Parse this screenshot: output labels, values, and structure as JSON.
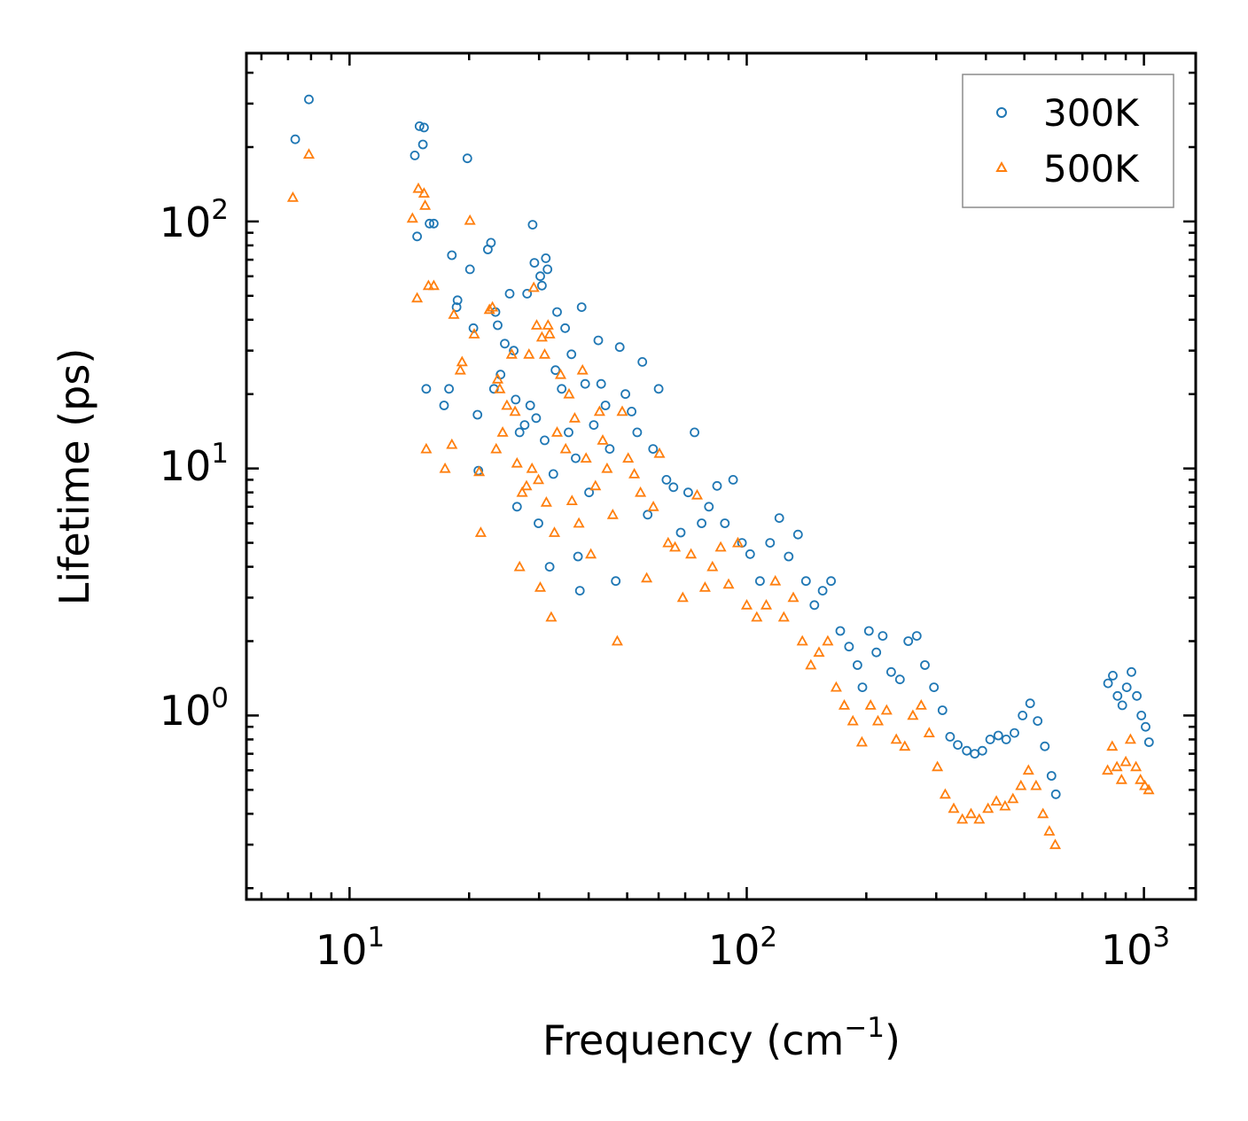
{
  "chart_data": {
    "type": "scatter",
    "xscale": "log",
    "yscale": "log",
    "xlim": [
      5.5,
      1350
    ],
    "ylim": [
      0.18,
      480
    ],
    "xlabel": "Frequency (cm",
    "xlabel_sup": "−1",
    "xlabel_suffix": ")",
    "ylabel": "Lifetime (ps)",
    "x_ticks": [
      {
        "base": "10",
        "exp": "1",
        "value": 10
      },
      {
        "base": "10",
        "exp": "2",
        "value": 100
      },
      {
        "base": "10",
        "exp": "3",
        "value": 1000
      }
    ],
    "y_ticks": [
      {
        "base": "10",
        "exp": "0",
        "value": 1
      },
      {
        "base": "10",
        "exp": "1",
        "value": 10
      },
      {
        "base": "10",
        "exp": "2",
        "value": 100
      }
    ],
    "legend_position": "top-right",
    "series": [
      {
        "name": "300K",
        "marker": "circle",
        "color": "#1f77b4",
        "points": [
          [
            7.3,
            215
          ],
          [
            7.9,
            312
          ],
          [
            14.6,
            185
          ],
          [
            14.8,
            87
          ],
          [
            15.0,
            243
          ],
          [
            15.3,
            205
          ],
          [
            15.4,
            240
          ],
          [
            15.6,
            21
          ],
          [
            15.9,
            98
          ],
          [
            16.3,
            98
          ],
          [
            17.3,
            18
          ],
          [
            17.8,
            21
          ],
          [
            18.1,
            73
          ],
          [
            18.6,
            45
          ],
          [
            18.7,
            48
          ],
          [
            19.8,
            180
          ],
          [
            20.1,
            64
          ],
          [
            20.5,
            37
          ],
          [
            21.0,
            16.5
          ],
          [
            21.1,
            9.8
          ],
          [
            22.3,
            77
          ],
          [
            22.7,
            82
          ],
          [
            23.1,
            21
          ],
          [
            23.3,
            43
          ],
          [
            23.6,
            38
          ],
          [
            24.0,
            24
          ],
          [
            24.6,
            32
          ],
          [
            25.3,
            51
          ],
          [
            25.9,
            30
          ],
          [
            26.2,
            19
          ],
          [
            26.4,
            7
          ],
          [
            26.8,
            14
          ],
          [
            27.6,
            15
          ],
          [
            28.0,
            51
          ],
          [
            28.5,
            18
          ],
          [
            28.9,
            97
          ],
          [
            29.2,
            68
          ],
          [
            29.5,
            16
          ],
          [
            29.9,
            6
          ],
          [
            30.2,
            60
          ],
          [
            30.5,
            55
          ],
          [
            31.0,
            13
          ],
          [
            31.2,
            71
          ],
          [
            31.5,
            64
          ],
          [
            31.9,
            4
          ],
          [
            32.6,
            9.5
          ],
          [
            33.0,
            25
          ],
          [
            33.3,
            43
          ],
          [
            34.2,
            21
          ],
          [
            34.9,
            37
          ],
          [
            35.6,
            14
          ],
          [
            36.2,
            29
          ],
          [
            37.1,
            11
          ],
          [
            37.6,
            4.4
          ],
          [
            38.0,
            3.2
          ],
          [
            38.4,
            45
          ],
          [
            39.2,
            22
          ],
          [
            40.1,
            8
          ],
          [
            41.2,
            15
          ],
          [
            42.3,
            33
          ],
          [
            43.0,
            22
          ],
          [
            44.1,
            18
          ],
          [
            45.2,
            12
          ],
          [
            46.8,
            3.5
          ],
          [
            47.9,
            31
          ],
          [
            49.5,
            20
          ],
          [
            51.3,
            17
          ],
          [
            53.0,
            14
          ],
          [
            54.6,
            27
          ],
          [
            56.3,
            6.5
          ],
          [
            58.1,
            12
          ],
          [
            60.0,
            21
          ],
          [
            62.8,
            9
          ],
          [
            65.4,
            8.4
          ],
          [
            68.2,
            5.5
          ],
          [
            71.2,
            8
          ],
          [
            73.9,
            14
          ],
          [
            77.0,
            6
          ],
          [
            80.3,
            7
          ],
          [
            84.2,
            8.5
          ],
          [
            88.1,
            6
          ],
          [
            92.4,
            9
          ],
          [
            97.3,
            5
          ],
          [
            102.0,
            4.5
          ],
          [
            108.0,
            3.5
          ],
          [
            114.5,
            5
          ],
          [
            120.8,
            6.3
          ],
          [
            127.5,
            4.4
          ],
          [
            134.6,
            5.4
          ],
          [
            141.0,
            3.5
          ],
          [
            148.0,
            2.8
          ],
          [
            155.3,
            3.2
          ],
          [
            163.0,
            3.5
          ],
          [
            172.0,
            2.2
          ],
          [
            181.0,
            1.9
          ],
          [
            190.0,
            1.6
          ],
          [
            195.6,
            1.3
          ],
          [
            203.0,
            2.2
          ],
          [
            212.0,
            1.8
          ],
          [
            220.0,
            2.1
          ],
          [
            231.0,
            1.5
          ],
          [
            243.0,
            1.4
          ],
          [
            255.0,
            2.0
          ],
          [
            268.0,
            2.1
          ],
          [
            281.0,
            1.6
          ],
          [
            296.0,
            1.3
          ],
          [
            311.0,
            1.05
          ],
          [
            325.0,
            0.82
          ],
          [
            340.0,
            0.76
          ],
          [
            358.0,
            0.72
          ],
          [
            375.0,
            0.7
          ],
          [
            392.0,
            0.72
          ],
          [
            410.0,
            0.8
          ],
          [
            430.0,
            0.83
          ],
          [
            450.0,
            0.8
          ],
          [
            472.0,
            0.85
          ],
          [
            495.0,
            1.0
          ],
          [
            517.0,
            1.12
          ],
          [
            540.0,
            0.95
          ],
          [
            563.0,
            0.75
          ],
          [
            585.0,
            0.57
          ],
          [
            600.0,
            0.48
          ],
          [
            812.0,
            1.35
          ],
          [
            835.0,
            1.45
          ],
          [
            858.0,
            1.2
          ],
          [
            882.0,
            1.1
          ],
          [
            905.0,
            1.3
          ],
          [
            930.0,
            1.5
          ],
          [
            960.0,
            1.2
          ],
          [
            985.0,
            1.0
          ],
          [
            1010.0,
            0.9
          ],
          [
            1030.0,
            0.78
          ]
        ]
      },
      {
        "name": "500K",
        "marker": "triangle",
        "color": "#ff7f0e",
        "points": [
          [
            7.2,
            125
          ],
          [
            7.9,
            187
          ],
          [
            14.4,
            103
          ],
          [
            14.8,
            49
          ],
          [
            14.9,
            136
          ],
          [
            15.4,
            130
          ],
          [
            15.5,
            116
          ],
          [
            15.6,
            12
          ],
          [
            15.8,
            55
          ],
          [
            16.3,
            55
          ],
          [
            17.4,
            10
          ],
          [
            18.1,
            12.5
          ],
          [
            18.3,
            42
          ],
          [
            19.0,
            25
          ],
          [
            19.2,
            27
          ],
          [
            20.1,
            101
          ],
          [
            20.6,
            35
          ],
          [
            21.2,
            9.7
          ],
          [
            21.4,
            5.5
          ],
          [
            22.5,
            44
          ],
          [
            22.9,
            45
          ],
          [
            23.4,
            12
          ],
          [
            23.6,
            23
          ],
          [
            23.9,
            21
          ],
          [
            24.3,
            14
          ],
          [
            24.9,
            18
          ],
          [
            25.6,
            29
          ],
          [
            26.1,
            17
          ],
          [
            26.4,
            10.5
          ],
          [
            26.8,
            4
          ],
          [
            27.2,
            8
          ],
          [
            27.9,
            8.5
          ],
          [
            28.3,
            29
          ],
          [
            28.8,
            10
          ],
          [
            29.1,
            54
          ],
          [
            29.6,
            38
          ],
          [
            29.9,
            9
          ],
          [
            30.2,
            3.3
          ],
          [
            30.5,
            34
          ],
          [
            31.0,
            29
          ],
          [
            31.3,
            7.3
          ],
          [
            31.6,
            38
          ],
          [
            31.9,
            35
          ],
          [
            32.2,
            2.5
          ],
          [
            32.8,
            5.5
          ],
          [
            33.3,
            14
          ],
          [
            34.0,
            24
          ],
          [
            35.0,
            12
          ],
          [
            35.7,
            20
          ],
          [
            36.3,
            7.4
          ],
          [
            36.9,
            16
          ],
          [
            37.8,
            6
          ],
          [
            38.6,
            25
          ],
          [
            39.4,
            11
          ],
          [
            40.5,
            4.5
          ],
          [
            41.6,
            8.5
          ],
          [
            42.6,
            17
          ],
          [
            43.4,
            13
          ],
          [
            44.5,
            10
          ],
          [
            46.0,
            6.5
          ],
          [
            47.2,
            2
          ],
          [
            48.6,
            17
          ],
          [
            50.3,
            11
          ],
          [
            52.1,
            9.5
          ],
          [
            54.0,
            8
          ],
          [
            56.0,
            3.6
          ],
          [
            58.2,
            7
          ],
          [
            60.3,
            11.5
          ],
          [
            63.4,
            5
          ],
          [
            66.0,
            4.8
          ],
          [
            69.0,
            3
          ],
          [
            72.4,
            4.5
          ],
          [
            75.0,
            7.8
          ],
          [
            78.5,
            3.3
          ],
          [
            82.0,
            4
          ],
          [
            86.0,
            4.8
          ],
          [
            90.0,
            3.4
          ],
          [
            95.0,
            5
          ],
          [
            100.0,
            2.8
          ],
          [
            106.0,
            2.5
          ],
          [
            112.0,
            2.8
          ],
          [
            118.0,
            3.5
          ],
          [
            124.0,
            2.5
          ],
          [
            131.0,
            3.0
          ],
          [
            138.0,
            2.0
          ],
          [
            145.0,
            1.6
          ],
          [
            152.0,
            1.8
          ],
          [
            160.0,
            2.0
          ],
          [
            168.0,
            1.3
          ],
          [
            176.0,
            1.1
          ],
          [
            185.0,
            0.95
          ],
          [
            195.0,
            0.78
          ],
          [
            205.0,
            1.1
          ],
          [
            214.0,
            0.95
          ],
          [
            225.0,
            1.05
          ],
          [
            238.0,
            0.8
          ],
          [
            250.0,
            0.75
          ],
          [
            262.0,
            1.0
          ],
          [
            275.0,
            1.1
          ],
          [
            288.0,
            0.85
          ],
          [
            302.0,
            0.62
          ],
          [
            316.0,
            0.48
          ],
          [
            332.0,
            0.42
          ],
          [
            349.0,
            0.38
          ],
          [
            367.0,
            0.4
          ],
          [
            385.0,
            0.38
          ],
          [
            405.0,
            0.42
          ],
          [
            425.0,
            0.45
          ],
          [
            447.0,
            0.43
          ],
          [
            468.0,
            0.46
          ],
          [
            490.0,
            0.52
          ],
          [
            512.0,
            0.6
          ],
          [
            535.0,
            0.52
          ],
          [
            557.0,
            0.4
          ],
          [
            578.0,
            0.34
          ],
          [
            598.0,
            0.3
          ],
          [
            810.0,
            0.6
          ],
          [
            832.0,
            0.75
          ],
          [
            855.0,
            0.62
          ],
          [
            878.0,
            0.55
          ],
          [
            900.0,
            0.65
          ],
          [
            925.0,
            0.8
          ],
          [
            955.0,
            0.62
          ],
          [
            980.0,
            0.55
          ],
          [
            1005.0,
            0.52
          ],
          [
            1028.0,
            0.5
          ]
        ]
      }
    ]
  }
}
